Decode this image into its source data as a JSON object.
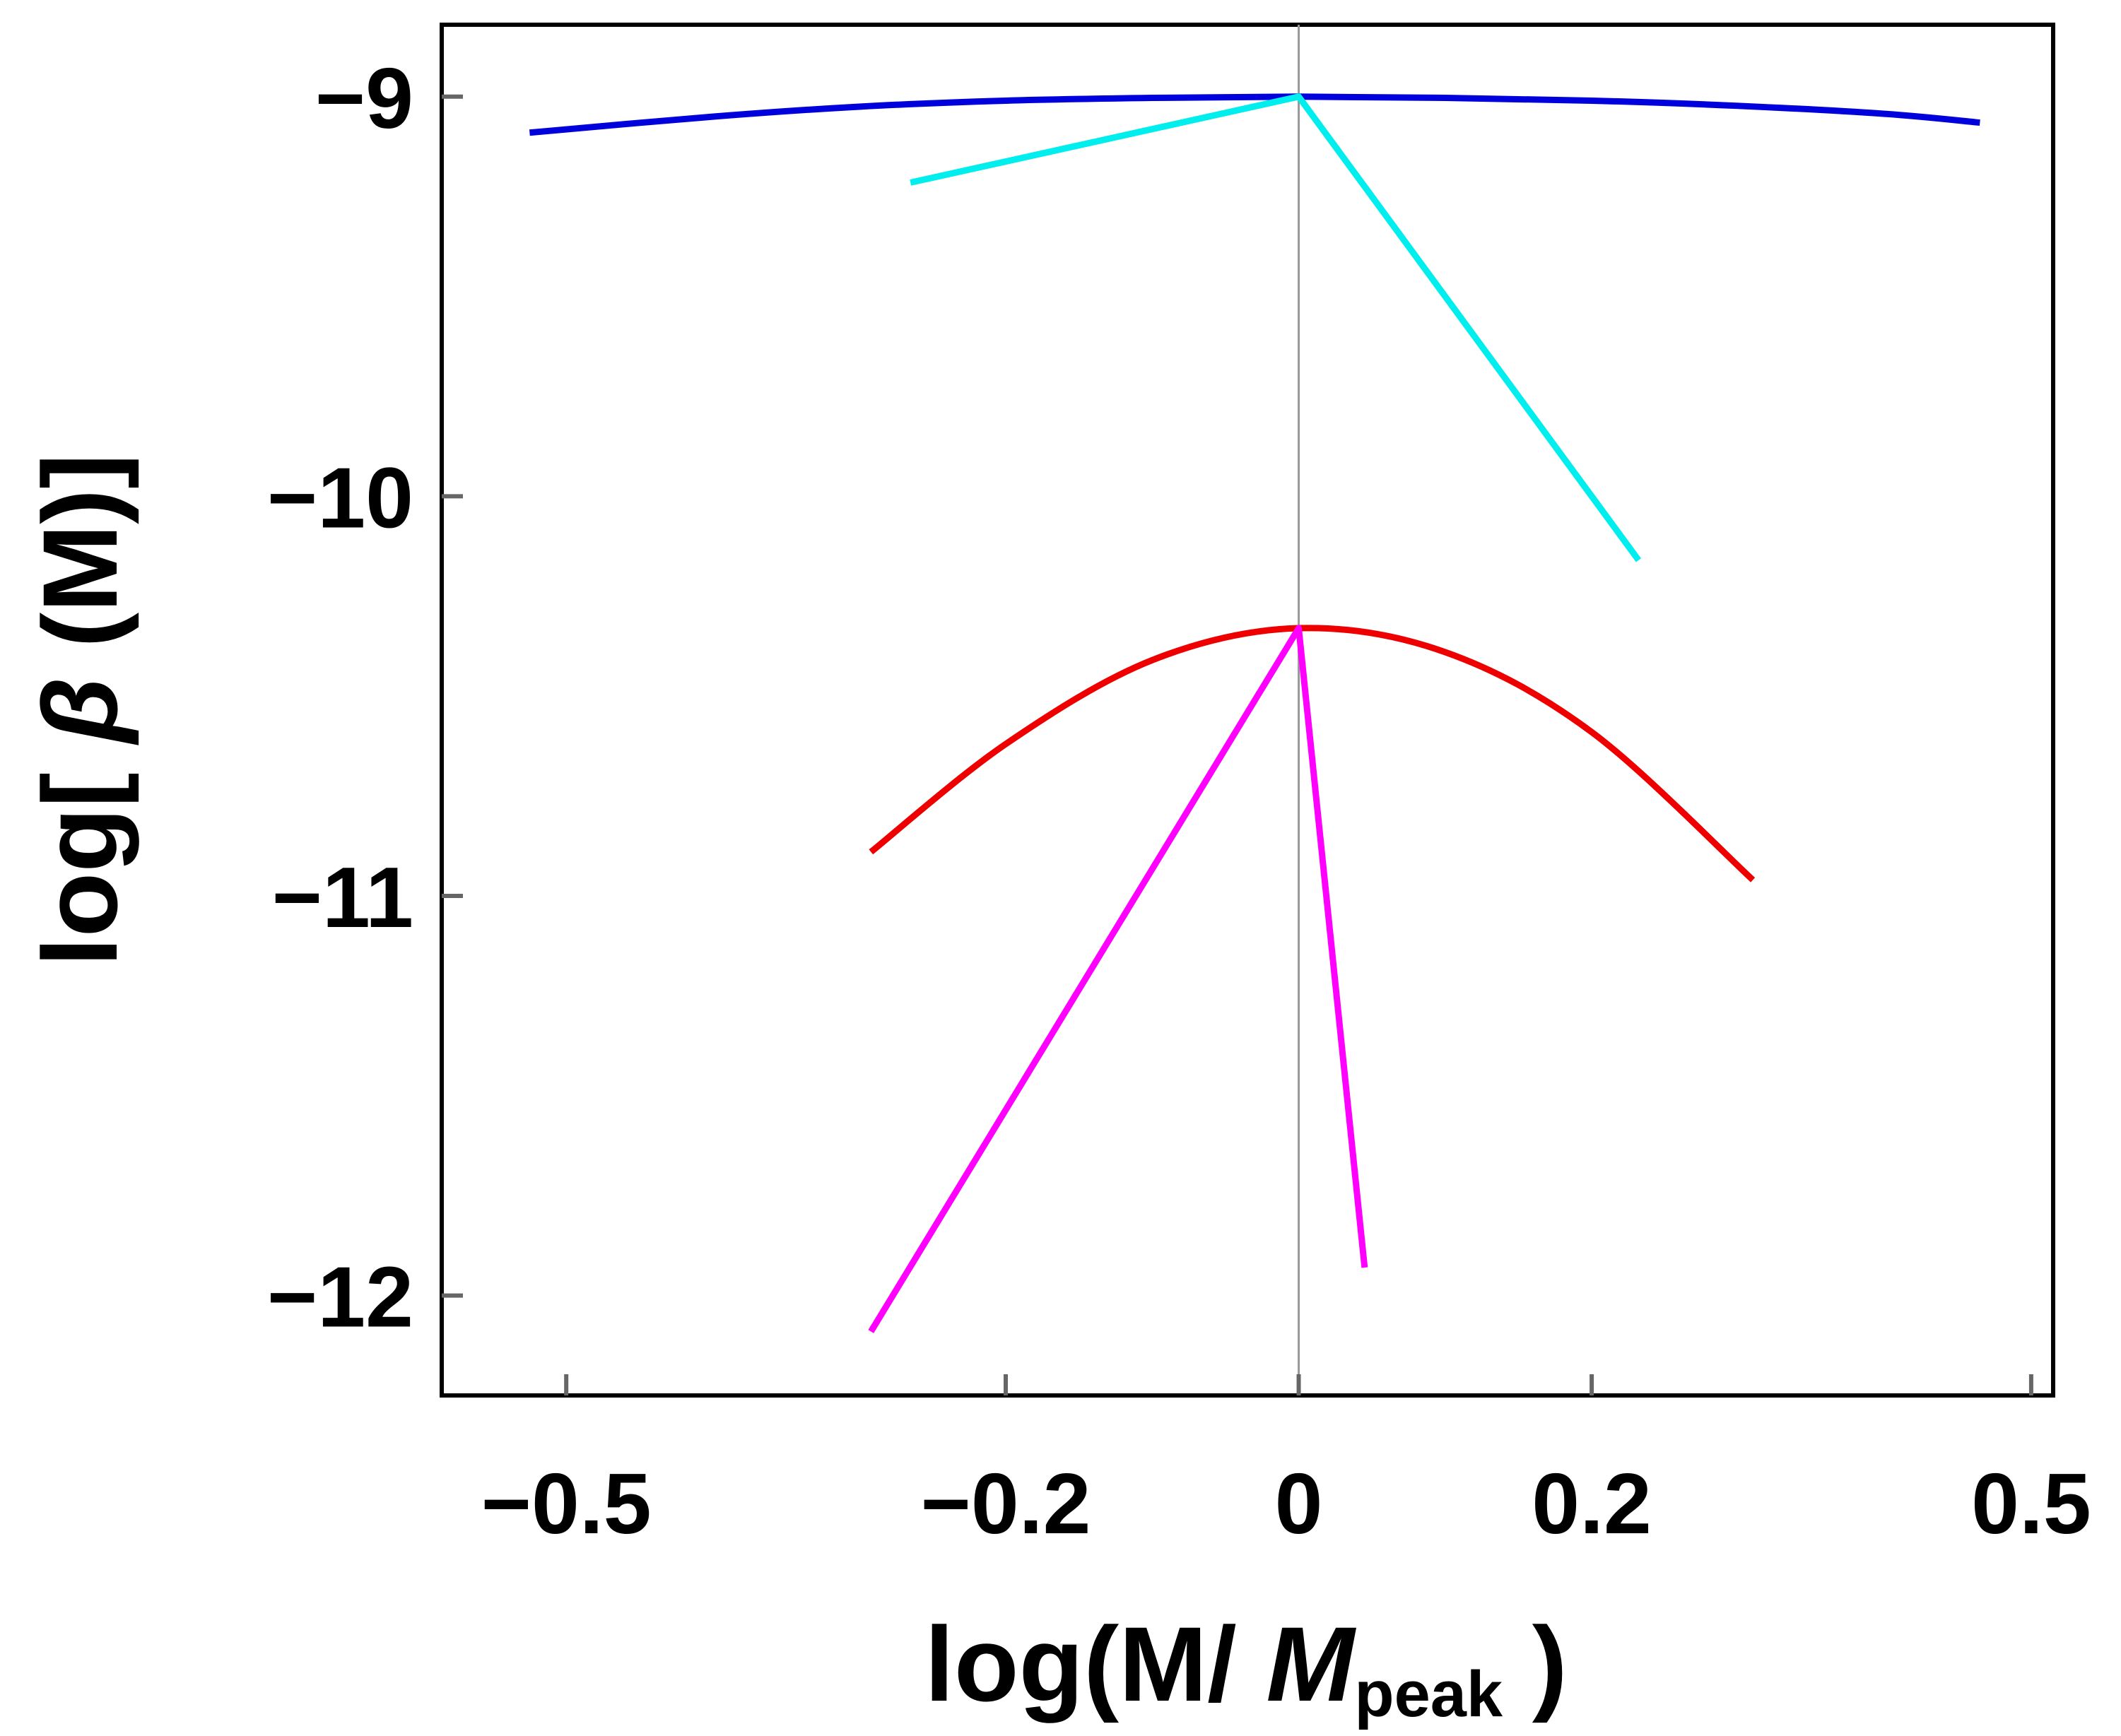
{
  "chart_data": {
    "type": "line",
    "title": "",
    "xlabel": {
      "prefix": "log(M/ ",
      "italic": "M",
      "subscript": "peak",
      "suffix": " )"
    },
    "ylabel": {
      "prefix": "log[ ",
      "italic": "β",
      "suffix": " (M)]"
    },
    "x_ticks": [
      {
        "value": -0.5,
        "label": "−0.5"
      },
      {
        "value": -0.2,
        "label": "−0.2"
      },
      {
        "value": 0,
        "label": "0"
      },
      {
        "value": 0.2,
        "label": "0.2"
      },
      {
        "value": 0.5,
        "label": "0.5"
      }
    ],
    "y_ticks": [
      {
        "value": -9,
        "label": "−9"
      },
      {
        "value": -10,
        "label": "−10"
      },
      {
        "value": -11,
        "label": "−11"
      },
      {
        "value": -12,
        "label": "−12"
      }
    ],
    "xlim": [
      -0.585,
      0.515
    ],
    "ylim": [
      -12.25,
      -8.82
    ],
    "reference_line_x": 0,
    "series": [
      {
        "name": "blue",
        "color": "#0000dd",
        "x": [
          -0.525,
          -0.4,
          -0.3,
          -0.2,
          -0.1,
          0,
          0.1,
          0.2,
          0.3,
          0.4,
          0.465
        ],
        "y": [
          -9.09,
          -9.05,
          -9.025,
          -9.01,
          -9.003,
          -9.0,
          -9.003,
          -9.01,
          -9.023,
          -9.043,
          -9.065
        ]
      },
      {
        "name": "cyan",
        "color": "#00eeee",
        "x": [
          -0.265,
          0,
          0.232
        ],
        "y": [
          -9.215,
          -9.0,
          -10.16
        ]
      },
      {
        "name": "red",
        "color": "#ee0000",
        "x": [
          -0.292,
          -0.2,
          -0.1,
          0,
          0.1,
          0.2,
          0.31
        ],
        "y": [
          -10.89,
          -10.62,
          -10.41,
          -10.33,
          -10.39,
          -10.59,
          -10.96
        ]
      },
      {
        "name": "magenta",
        "color": "#ff00ff",
        "x": [
          -0.292,
          0,
          0.045
        ],
        "y": [
          -12.09,
          -10.33,
          -11.93
        ]
      }
    ]
  }
}
